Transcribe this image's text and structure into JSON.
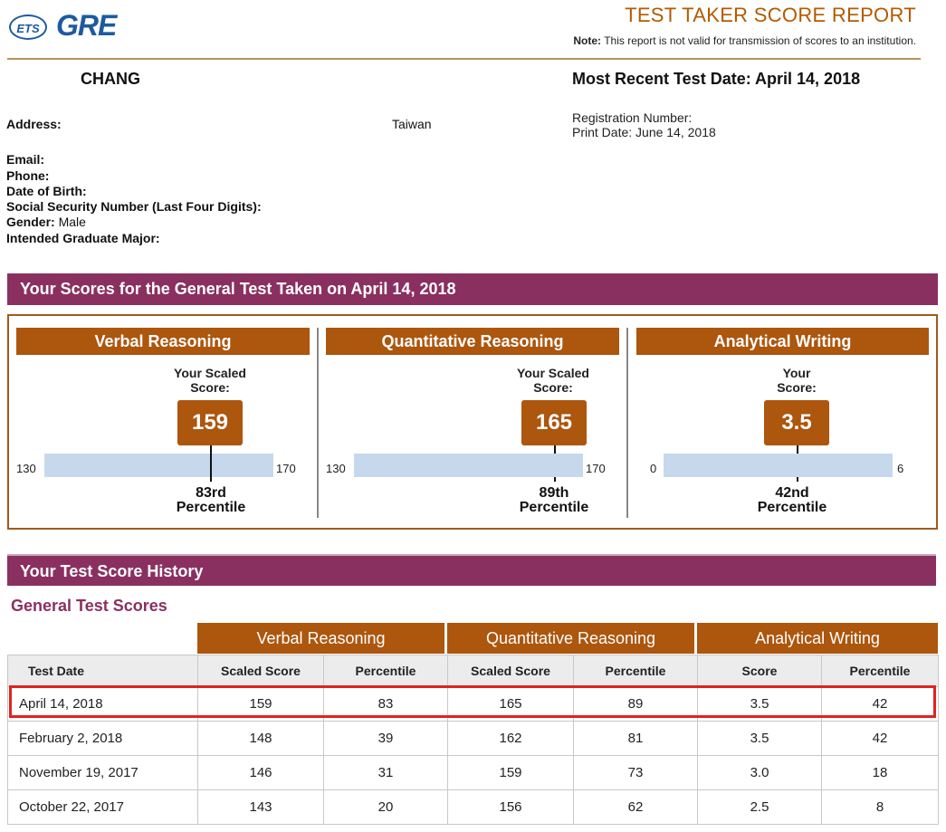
{
  "header": {
    "logo_ets": "ETS",
    "logo_gre": "GRE",
    "title": "TEST TAKER SCORE REPORT",
    "note_label": "Note:",
    "note_text": "This report is not valid for transmission of scores to an institution."
  },
  "candidate": {
    "name": "CHANG",
    "most_recent_test_date": "Most Recent Test Date: April 14, 2018",
    "address_label": "Address:",
    "address_country": "Taiwan",
    "registration_label": "Registration Number:",
    "print_date": "Print Date: June 14, 2018",
    "email_label": "Email:",
    "phone_label": "Phone:",
    "dob_label": "Date of Birth:",
    "ssn_label": "Social Security Number (Last Four Digits):",
    "gender_label": "Gender:",
    "gender_value": "Male",
    "major_label": "Intended Graduate Major:"
  },
  "scores_section": {
    "title": "Your Scores for the General Test Taken on April 14, 2018",
    "panels": [
      {
        "heading": "Verbal Reasoning",
        "score_label_1": "Your Scaled",
        "score_label_2": "Score:",
        "score": "159",
        "min": "130",
        "max": "170",
        "percentile": "83rd",
        "percentile_word": "Percentile",
        "level": 0.725
      },
      {
        "heading": "Quantitative Reasoning",
        "score_label_1": "Your Scaled",
        "score_label_2": "Score:",
        "score": "165",
        "min": "130",
        "max": "170",
        "percentile": "89th",
        "percentile_word": "Percentile",
        "level": 0.875
      },
      {
        "heading": "Analytical Writing",
        "score_label_1": "Your",
        "score_label_2": "Score:",
        "score": "3.5",
        "min": "0",
        "max": "6",
        "percentile": "42nd",
        "percentile_word": "Percentile",
        "level": 0.583
      }
    ]
  },
  "history": {
    "title": "Your Test Score History",
    "subtitle": "General Test Scores",
    "groups": [
      "Verbal Reasoning",
      "Quantitative Reasoning",
      "Analytical Writing"
    ],
    "columns": [
      "Test Date",
      "Scaled Score",
      "Percentile",
      "Scaled Score",
      "Percentile",
      "Score",
      "Percentile"
    ],
    "rows": [
      [
        "April 14, 2018",
        "159",
        "83",
        "165",
        "89",
        "3.5",
        "42"
      ],
      [
        "February 2, 2018",
        "148",
        "39",
        "162",
        "81",
        "3.5",
        "42"
      ],
      [
        "November 19, 2017",
        "146",
        "31",
        "159",
        "73",
        "3.0",
        "18"
      ],
      [
        "October 22, 2017",
        "143",
        "20",
        "156",
        "62",
        "2.5",
        "8"
      ]
    ]
  },
  "colors": {
    "accent_orange": "#ac560e",
    "section_purple": "#8a3060",
    "scale_bar": "#c6d9ec",
    "highlight_red": "#e0231f"
  }
}
